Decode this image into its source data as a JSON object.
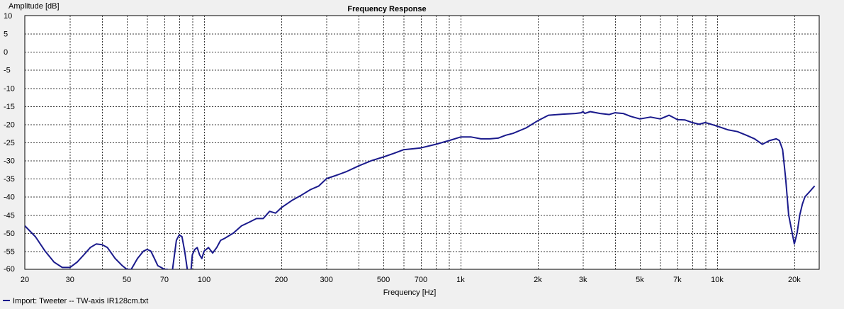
{
  "chart_data": {
    "type": "line",
    "title": "Frequency Response",
    "xlabel": "Frequency [Hz]",
    "ylabel": "Amplitude [dB]",
    "x_scale": "log",
    "xlim": [
      20,
      25000
    ],
    "ylim": [
      -60,
      10
    ],
    "y_ticks": [
      10,
      5,
      0,
      -5,
      -10,
      -15,
      -20,
      -25,
      -30,
      -35,
      -40,
      -45,
      -50,
      -55,
      -60
    ],
    "x_tick_labels": [
      {
        "value": 20,
        "label": "20"
      },
      {
        "value": 30,
        "label": "30"
      },
      {
        "value": 50,
        "label": "50"
      },
      {
        "value": 70,
        "label": "70"
      },
      {
        "value": 100,
        "label": "100"
      },
      {
        "value": 200,
        "label": "200"
      },
      {
        "value": 300,
        "label": "300"
      },
      {
        "value": 500,
        "label": "500"
      },
      {
        "value": 700,
        "label": "700"
      },
      {
        "value": 1000,
        "label": "1k"
      },
      {
        "value": 2000,
        "label": "2k"
      },
      {
        "value": 3000,
        "label": "3k"
      },
      {
        "value": 5000,
        "label": "5k"
      },
      {
        "value": 7000,
        "label": "7k"
      },
      {
        "value": 10000,
        "label": "10k"
      },
      {
        "value": 20000,
        "label": "20k"
      }
    ],
    "x_grid": [
      20,
      30,
      40,
      50,
      60,
      70,
      80,
      90,
      100,
      200,
      300,
      400,
      500,
      600,
      700,
      800,
      900,
      1000,
      2000,
      3000,
      4000,
      5000,
      6000,
      7000,
      8000,
      9000,
      10000,
      20000
    ],
    "grid": true,
    "legend_position": "bottom-left",
    "colors": {
      "series": "#1a1a8c",
      "background": "#f0f0f0",
      "plot_area": "#ffffff",
      "grid": "#3a3a3a"
    },
    "series": [
      {
        "name": "Import: Tweeter -- TW-axis IR128cm.txt",
        "x": [
          20,
          22,
          24,
          26,
          28,
          30,
          32,
          34,
          36,
          38,
          40,
          42,
          45,
          48,
          50,
          52,
          55,
          58,
          60,
          62,
          64,
          66,
          68,
          70,
          72,
          75,
          78,
          80,
          82,
          84,
          86,
          88,
          90,
          92,
          94,
          96,
          98,
          100,
          104,
          108,
          112,
          116,
          120,
          130,
          140,
          150,
          160,
          170,
          180,
          190,
          200,
          220,
          240,
          260,
          280,
          300,
          330,
          360,
          400,
          450,
          500,
          550,
          600,
          700,
          800,
          900,
          1000,
          1100,
          1200,
          1300,
          1400,
          1500,
          1600,
          1800,
          2000,
          2200,
          2500,
          2800,
          2950,
          3000,
          3050,
          3200,
          3500,
          3800,
          4000,
          4300,
          4600,
          5000,
          5500,
          6000,
          6500,
          7000,
          7500,
          8000,
          8500,
          9000,
          9500,
          10000,
          11000,
          12000,
          13000,
          14000,
          15000,
          16000,
          17000,
          17500,
          18000,
          18500,
          19000,
          19500,
          20000,
          20500,
          21000,
          21500,
          22000,
          23000,
          24000
        ],
        "y": [
          -48,
          -51,
          -55,
          -58,
          -59.5,
          -59.5,
          -58,
          -56,
          -54,
          -53,
          -53.2,
          -54,
          -57,
          -59,
          -60,
          -60,
          -57,
          -55,
          -54.5,
          -55,
          -57,
          -59,
          -59.5,
          -60,
          -60,
          -61,
          -52,
          -50.5,
          -51,
          -55,
          -60,
          -64,
          -56,
          -54.5,
          -54,
          -56,
          -57,
          -55,
          -54,
          -55.5,
          -54,
          -52,
          -51.5,
          -50,
          -48,
          -47,
          -46,
          -46,
          -44,
          -44.5,
          -43,
          -41,
          -39.5,
          -38,
          -37,
          -35,
          -34,
          -33,
          -31.5,
          -30,
          -29,
          -28,
          -27,
          -26.5,
          -25.5,
          -24.5,
          -23.5,
          -23.5,
          -24,
          -24,
          -23.8,
          -23,
          -22.5,
          -21,
          -19,
          -17.5,
          -17.2,
          -17,
          -16.8,
          -16.5,
          -17,
          -16.5,
          -17,
          -17.3,
          -16.8,
          -17,
          -17.8,
          -18.5,
          -18,
          -18.5,
          -17.5,
          -18.7,
          -18.8,
          -19.5,
          -20,
          -19.5,
          -20,
          -20.5,
          -21.5,
          -22,
          -23,
          -24,
          -25.5,
          -24.5,
          -24,
          -24.5,
          -27,
          -35,
          -45,
          -49,
          -53,
          -50,
          -45,
          -42,
          -40,
          -38.5,
          -37
        ]
      }
    ]
  }
}
